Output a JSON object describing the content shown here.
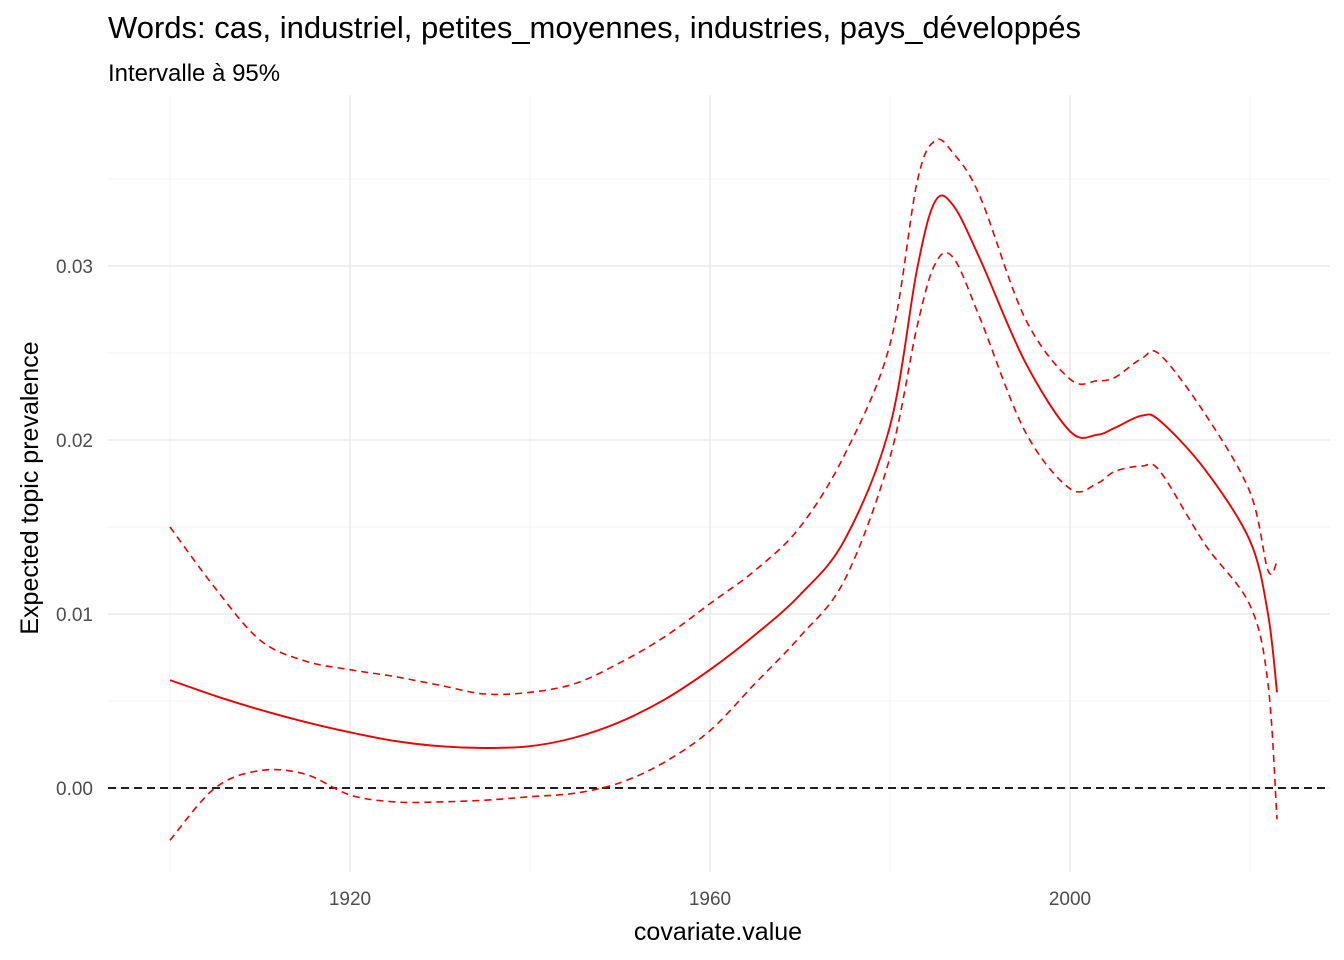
{
  "chart_data": {
    "type": "line",
    "title": "Words: cas, industriel, petites_moyennes, industries, pays_développés",
    "subtitle": "Intervalle à 95%",
    "xlabel": "covariate.value",
    "ylabel": "Expected topic prevalence",
    "xlim": [
      1890,
      2025
    ],
    "ylim": [
      -0.005,
      0.0375
    ],
    "x_ticks": [
      "1920",
      "1960",
      "2000"
    ],
    "x_tick_values": [
      1920,
      1960,
      2000
    ],
    "y_ticks": [
      "0.00",
      "0.01",
      "0.02",
      "0.03"
    ],
    "y_tick_values": [
      0,
      0.01,
      0.02,
      0.03
    ],
    "grid": true,
    "reference_line": {
      "y": 0,
      "style": "dashed",
      "color": "#000000"
    },
    "x": [
      1900,
      1905,
      1910,
      1915,
      1920,
      1925,
      1930,
      1935,
      1940,
      1945,
      1950,
      1955,
      1960,
      1965,
      1970,
      1975,
      1980,
      1983,
      1985,
      1987,
      1990,
      1995,
      2000,
      2003,
      2005,
      2008,
      2010,
      2015,
      2020,
      2022,
      2023
    ],
    "series": [
      {
        "role": "estimate",
        "style": "solid",
        "color": "#ee0000",
        "values": [
          0.0062,
          0.0053,
          0.0045,
          0.0038,
          0.0032,
          0.0027,
          0.0024,
          0.0023,
          0.0024,
          0.0029,
          0.0038,
          0.0051,
          0.0068,
          0.0088,
          0.0111,
          0.0143,
          0.0208,
          0.0298,
          0.0337,
          0.0335,
          0.0304,
          0.0245,
          0.0205,
          0.0203,
          0.0207,
          0.0214,
          0.0211,
          0.0183,
          0.0142,
          0.01,
          0.0055
        ]
      },
      {
        "role": "upper 95%",
        "style": "dashed",
        "color": "#ee0000",
        "values": [
          0.015,
          0.0115,
          0.0085,
          0.0073,
          0.0068,
          0.0064,
          0.0059,
          0.0054,
          0.0055,
          0.006,
          0.0072,
          0.0087,
          0.0106,
          0.0125,
          0.015,
          0.0192,
          0.0255,
          0.0348,
          0.0372,
          0.0365,
          0.034,
          0.027,
          0.0235,
          0.0234,
          0.0236,
          0.0247,
          0.0249,
          0.0215,
          0.017,
          0.0125,
          0.013
        ]
      },
      {
        "role": "lower 95%",
        "style": "dashed",
        "color": "#ee0000",
        "values": [
          -0.003,
          0.0,
          0.001,
          0.0008,
          -0.0004,
          -0.0008,
          -0.0008,
          -0.0007,
          -0.0005,
          -0.0003,
          0.0003,
          0.0015,
          0.0033,
          0.006,
          0.0087,
          0.012,
          0.019,
          0.0265,
          0.0301,
          0.0305,
          0.027,
          0.0205,
          0.0172,
          0.0175,
          0.0182,
          0.0185,
          0.0182,
          0.014,
          0.0105,
          0.006,
          -0.0018
        ]
      }
    ]
  }
}
